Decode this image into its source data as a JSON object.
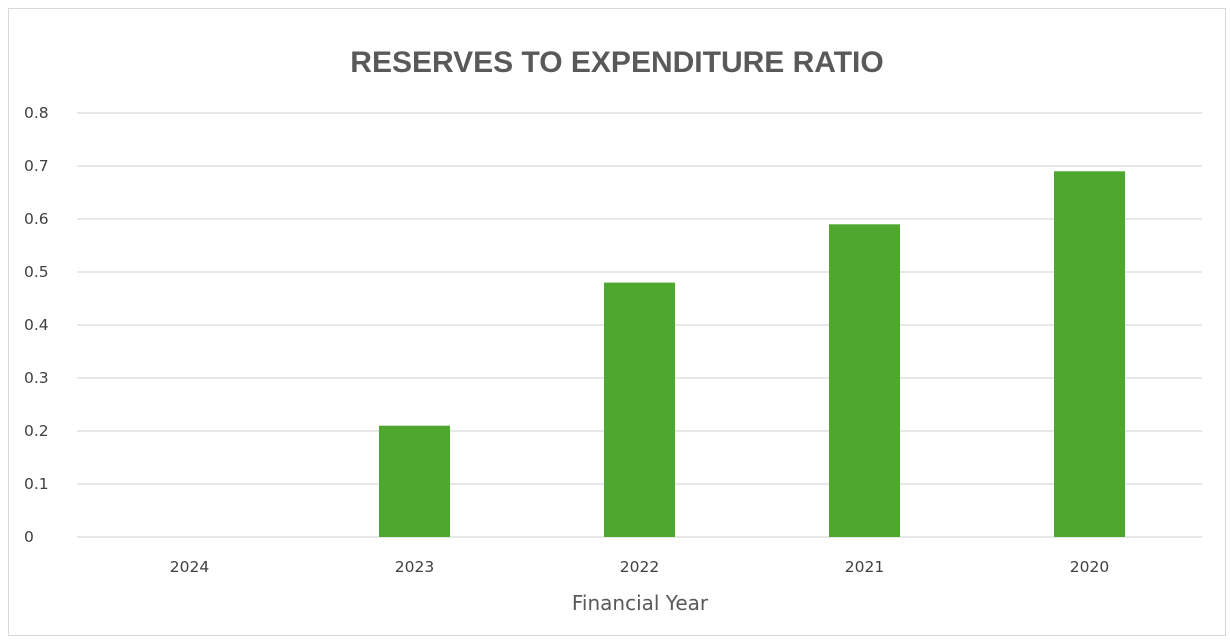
{
  "chart_data": {
    "type": "bar",
    "title": "RESERVES TO EXPENDITURE RATIO",
    "xlabel": "Financial Year",
    "ylabel": "",
    "categories": [
      "2024",
      "2023",
      "2022",
      "2021",
      "2020"
    ],
    "values": [
      0,
      0.21,
      0.48,
      0.59,
      0.69
    ],
    "ylim": [
      0,
      0.8
    ],
    "yticks": [
      "0",
      "0.1",
      "0.2",
      "0.3",
      "0.4",
      "0.5",
      "0.6",
      "0.7",
      "0.8"
    ],
    "grid": true,
    "legend": "none",
    "bar_color": "#4ea72e",
    "grid_color": "#d9d9d9"
  }
}
